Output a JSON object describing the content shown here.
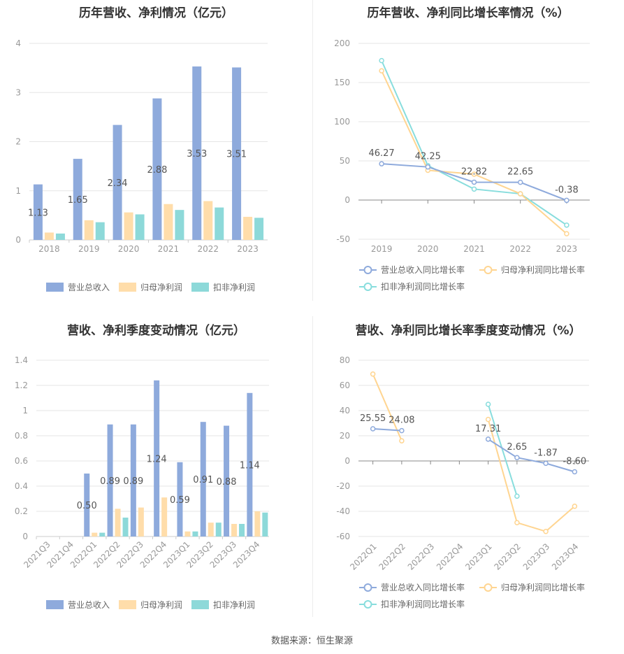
{
  "footer": "数据来源：恒生聚源",
  "colors": {
    "revenue": "#8eaadc",
    "net_profit": "#ffddaa",
    "deducted_profit": "#8dd9d9",
    "revenue_line": "#8eaadc",
    "net_profit_line": "#ffd591",
    "deducted_line": "#88dddd",
    "grid": "#e6e6e6",
    "axis_text": "#999999",
    "label_text": "#555555"
  },
  "chart_data": [
    {
      "id": "annual-amounts",
      "type": "bar",
      "title": "历年营收、净利情况（亿元）",
      "categories": [
        "2018",
        "2019",
        "2020",
        "2021",
        "2022",
        "2023"
      ],
      "ylim": [
        0,
        4
      ],
      "yticks": [
        "0",
        "1",
        "2",
        "3",
        "4"
      ],
      "grid": true,
      "legend_position": "bottom",
      "series": [
        {
          "name": "营业总收入",
          "values": [
            1.13,
            1.65,
            2.34,
            2.88,
            3.53,
            3.51
          ],
          "labels": [
            "1.13",
            "1.65",
            "2.34",
            "2.88",
            "3.53",
            "3.51"
          ]
        },
        {
          "name": "归母净利润",
          "values": [
            0.15,
            0.4,
            0.56,
            0.73,
            0.79,
            0.47
          ],
          "labels": []
        },
        {
          "name": "扣非净利润",
          "values": [
            0.13,
            0.36,
            0.52,
            0.61,
            0.66,
            0.45
          ],
          "labels": []
        }
      ]
    },
    {
      "id": "annual-growth",
      "type": "line",
      "title": "历年营收、净利同比增长率情况（%）",
      "categories": [
        "2019",
        "2020",
        "2021",
        "2022",
        "2023"
      ],
      "ylim": [
        -50,
        200
      ],
      "yticks": [
        "200",
        "150",
        "100",
        "50",
        "0",
        "-50"
      ],
      "grid": true,
      "legend_position": "bottom",
      "series": [
        {
          "name": "营业总收入同比增长率",
          "values": [
            46.27,
            42.25,
            22.82,
            22.65,
            -0.38
          ],
          "labels": [
            "46.27",
            "42.25",
            "22.82",
            "22.65",
            "-0.38"
          ]
        },
        {
          "name": "归母净利润同比增长率",
          "values": [
            165,
            38,
            33,
            8,
            -43
          ],
          "labels": []
        },
        {
          "name": "扣非净利润同比增长率",
          "values": [
            178,
            44,
            14,
            8,
            -32
          ],
          "labels": []
        }
      ]
    },
    {
      "id": "quarterly-amounts",
      "type": "bar",
      "title": "营收、净利季度变动情况（亿元）",
      "categories": [
        "2021Q3",
        "2021Q4",
        "2022Q1",
        "2022Q2",
        "2022Q3",
        "2022Q4",
        "2023Q1",
        "2023Q2",
        "2023Q3",
        "2023Q4"
      ],
      "ylim": [
        0,
        1.4
      ],
      "yticks": [
        "0",
        "0.2",
        "0.4",
        "0.6",
        "0.8",
        "1",
        "1.2",
        "1.4"
      ],
      "grid": true,
      "legend_position": "bottom",
      "series": [
        {
          "name": "营业总收入",
          "values": [
            null,
            null,
            0.5,
            0.89,
            0.89,
            1.24,
            0.59,
            0.91,
            0.88,
            1.14
          ],
          "labels": [
            "",
            "",
            "0.50",
            "0.89",
            "0.89",
            "1.24",
            "0.59",
            "0.91",
            "0.88",
            "1.14"
          ]
        },
        {
          "name": "归母净利润",
          "values": [
            null,
            null,
            0.03,
            0.22,
            0.23,
            0.31,
            0.04,
            0.11,
            0.1,
            0.2
          ],
          "labels": []
        },
        {
          "name": "扣非净利润",
          "values": [
            null,
            null,
            0.03,
            0.15,
            null,
            null,
            0.04,
            0.11,
            0.1,
            0.19
          ],
          "labels": []
        }
      ]
    },
    {
      "id": "quarterly-growth",
      "type": "line",
      "title": "营收、净利同比增长率季度变动情况（%）",
      "categories": [
        "2022Q1",
        "2022Q2",
        "2022Q3",
        "2022Q4",
        "2023Q1",
        "2023Q2",
        "2023Q3",
        "2023Q4"
      ],
      "ylim": [
        -60,
        80
      ],
      "yticks": [
        "80",
        "60",
        "40",
        "20",
        "0",
        "-20",
        "-40",
        "-60"
      ],
      "grid": true,
      "legend_position": "bottom",
      "series": [
        {
          "name": "营业总收入同比增长率",
          "values": [
            25.55,
            24.08,
            null,
            null,
            17.31,
            2.65,
            -1.87,
            -8.6
          ],
          "labels": [
            "25.55",
            "24.08",
            "",
            "",
            "17.31",
            "2.65",
            "-1.87",
            "-8.60"
          ]
        },
        {
          "name": "归母净利润同比增长率",
          "values": [
            69,
            16,
            null,
            null,
            33,
            -49,
            -56,
            -36
          ],
          "labels": []
        },
        {
          "name": "扣非净利润同比增长率",
          "values": [
            null,
            null,
            null,
            null,
            45,
            -28,
            null,
            null
          ],
          "labels": []
        }
      ]
    }
  ]
}
